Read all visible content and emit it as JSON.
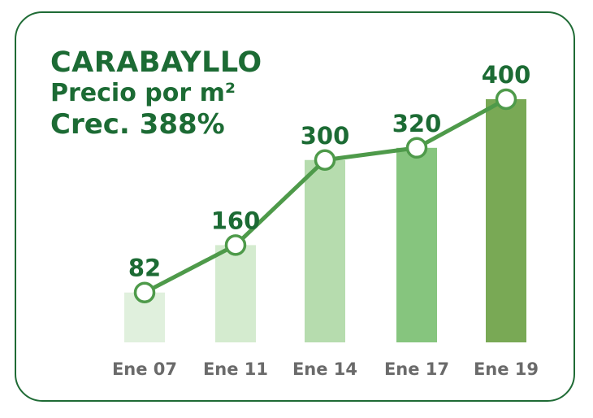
{
  "title": "CARABAYLLO",
  "subtitle": "Precio por m²",
  "growth": "Crec. 388%",
  "colors": {
    "border": "#1f6b35",
    "text": "#1c6b34",
    "line": "#4e9a4a",
    "bars": [
      "#e0f0dd",
      "#d4ebcf",
      "#b6dcae",
      "#86c57e",
      "#79a955"
    ]
  },
  "chart_data": {
    "type": "bar",
    "categories": [
      "Ene 07",
      "Ene 11",
      "Ene 14",
      "Ene 17",
      "Ene 19"
    ],
    "values": [
      82,
      160,
      300,
      320,
      400
    ],
    "data_labels": [
      "82",
      "160",
      "300",
      "320",
      "400"
    ],
    "ylim": [
      0,
      420
    ],
    "overlay": "line with circle markers",
    "grid": false,
    "legend": "none"
  }
}
